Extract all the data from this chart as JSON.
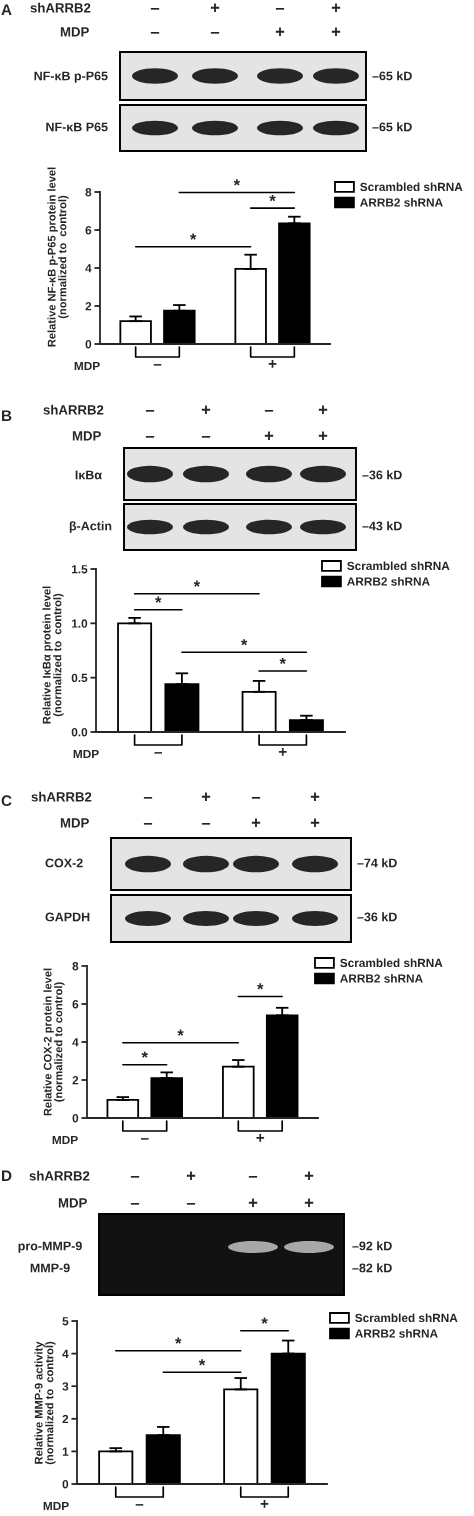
{
  "chart_data": [
    {
      "type": "other",
      "annotations": [
        "A",
        "shARRB2",
        "–",
        "+",
        "–",
        "+",
        "MDP",
        "–",
        "–",
        "+",
        "+",
        "NF-κB p-P65",
        "–65 kD",
        "NF-κB P65",
        "–65 kD"
      ]
    },
    {
      "type": "bar",
      "xlabel": "MDP",
      "ylabel": "Relative NF-κB p-P65 protein level\n(normalized to  control)",
      "categories": [
        "–",
        "+"
      ],
      "series": [
        {
          "name": "Scrambled shRNA",
          "color": "#ffffff",
          "values": [
            1.2,
            3.95
          ],
          "errors": [
            [
              1.2,
              1.45
            ],
            [
              3.95,
              4.7
            ]
          ]
        },
        {
          "name": "ARRB2 shRNA",
          "color": "#000000",
          "values": [
            1.75,
            6.35
          ],
          "errors": [
            [
              1.75,
              2.05
            ],
            [
              6.35,
              6.7
            ]
          ]
        }
      ],
      "ylim": [
        0,
        8
      ],
      "yticks": [
        0,
        2,
        4,
        6,
        8
      ],
      "legend": "top right",
      "annotations": [
        "*",
        "*",
        "*"
      ]
    },
    {
      "type": "other",
      "annotations": [
        "B",
        "shARRB2",
        "–",
        "+",
        "–",
        "+",
        "MDP",
        "–",
        "–",
        "+",
        "+",
        "IκBα",
        "–36 kD",
        "β-Actin",
        "–43 kD"
      ]
    },
    {
      "type": "bar",
      "xlabel": "MDP",
      "ylabel": "Relative IκBα protein level\n(normalized to  control)",
      "categories": [
        "–",
        "+"
      ],
      "series": [
        {
          "name": "Scrambled shRNA",
          "color": "#ffffff",
          "values": [
            1.0,
            0.37
          ],
          "errors": [
            [
              1.0,
              1.05
            ],
            [
              0.37,
              0.47
            ]
          ]
        },
        {
          "name": "ARRB2 shRNA",
          "color": "#000000",
          "values": [
            0.44,
            0.11
          ],
          "errors": [
            [
              0.44,
              0.54
            ],
            [
              0.11,
              0.15
            ]
          ]
        }
      ],
      "ylim": [
        0,
        1.5
      ],
      "yticks": [
        {
          "value": 0,
          "label": "0.0"
        },
        0.5,
        {
          "value": 1,
          "label": "1.0"
        },
        1.5
      ],
      "legend": "top right",
      "annotations": [
        "*",
        "*",
        "*",
        "*"
      ]
    },
    {
      "type": "other",
      "annotations": [
        "C",
        "shARRB2",
        "–",
        "+",
        "–",
        "+",
        "MDP",
        "–",
        "–",
        "+",
        "+",
        "COX-2",
        "–74 kD",
        "GAPDH",
        "–36 kD"
      ]
    },
    {
      "type": "bar",
      "xlabel": "MDP",
      "ylabel": "Relative COX-2 protein level\n(normalized to control)",
      "categories": [
        "–",
        "+"
      ],
      "series": [
        {
          "name": "Scrambled shRNA",
          "color": "#ffffff",
          "values": [
            0.95,
            2.7
          ],
          "errors": [
            [
              0.95,
              1.1
            ],
            [
              2.7,
              3.05
            ]
          ]
        },
        {
          "name": "ARRB2 shRNA",
          "color": "#000000",
          "values": [
            2.1,
            5.4
          ],
          "errors": [
            [
              2.1,
              2.4
            ],
            [
              5.4,
              5.8
            ]
          ]
        }
      ],
      "ylim": [
        0,
        8
      ],
      "yticks": [
        0,
        2,
        4,
        6,
        8
      ],
      "legend": "top right",
      "annotations": [
        "*",
        "*",
        "*"
      ]
    },
    {
      "type": "other",
      "annotations": [
        "D",
        "shARRB2",
        "–",
        "+",
        "–",
        "+",
        "MDP",
        "–",
        "–",
        "+",
        "+",
        "pro-MMP-9",
        "–92 kD",
        "MMP-9",
        "–82 kD"
      ]
    },
    {
      "type": "bar",
      "xlabel": "MDP",
      "ylabel": "Relative MMP-9 activity\n(normalized to  control)",
      "categories": [
        "–",
        "+"
      ],
      "series": [
        {
          "name": "Scrambled shRNA",
          "color": "#ffffff",
          "values": [
            1.0,
            2.9
          ],
          "errors": [
            [
              1.0,
              1.1
            ],
            [
              2.9,
              3.25
            ]
          ]
        },
        {
          "name": "ARRB2 shRNA",
          "color": "#000000",
          "values": [
            1.5,
            4.0
          ],
          "errors": [
            [
              1.5,
              1.75
            ],
            [
              4.0,
              4.4
            ]
          ]
        }
      ],
      "ylim": [
        0,
        5
      ],
      "yticks": [
        0,
        1,
        2,
        3,
        4,
        5
      ],
      "legend": "top right",
      "annotations": [
        "*",
        "*",
        "*"
      ]
    }
  ]
}
